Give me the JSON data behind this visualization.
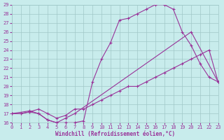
{
  "bg_color": "#c8ecec",
  "grid_color": "#a0c8c8",
  "line_color": "#993399",
  "xlim": [
    0,
    23
  ],
  "ylim": [
    16,
    29
  ],
  "xticks": [
    0,
    1,
    2,
    3,
    4,
    5,
    6,
    7,
    8,
    9,
    10,
    11,
    12,
    13,
    14,
    15,
    16,
    17,
    18,
    19,
    20,
    21,
    22,
    23
  ],
  "yticks": [
    16,
    17,
    18,
    19,
    20,
    21,
    22,
    23,
    24,
    25,
    26,
    27,
    28,
    29
  ],
  "xlabel": "Windchill (Refroidissement éolien,°C)",
  "line1_x": [
    0,
    1,
    2,
    3,
    4,
    5,
    6,
    7,
    8,
    9,
    10,
    11,
    12,
    13,
    14,
    15,
    16,
    17,
    18,
    19,
    20,
    21,
    22,
    23
  ],
  "line1_y": [
    17,
    17,
    17.2,
    17,
    16.3,
    16,
    16,
    16,
    16.2,
    20.5,
    23.0,
    24.8,
    27.3,
    27.5,
    28.0,
    28.5,
    29.0,
    29.0,
    28.5,
    26.0,
    24.5,
    22.5,
    21.0,
    20.5
  ],
  "line2_x": [
    0,
    2,
    3,
    4,
    5,
    6,
    7,
    20,
    23
  ],
  "line2_y": [
    17,
    17.3,
    17.0,
    16.3,
    16.0,
    16.5,
    17.0,
    26.0,
    20.5
  ],
  "line3_x": [
    0,
    1,
    2,
    3,
    4,
    5,
    6,
    7,
    8,
    9,
    10,
    11,
    12,
    13,
    14,
    15,
    16,
    17,
    18,
    19,
    20,
    21,
    22,
    23
  ],
  "line3_y": [
    17,
    17,
    17.2,
    17.5,
    17.0,
    16.5,
    16.8,
    17.5,
    17.5,
    18.0,
    18.5,
    19.0,
    19.5,
    20.0,
    20.0,
    20.5,
    21.0,
    21.5,
    22.0,
    22.5,
    23.0,
    23.5,
    24.0,
    20.5
  ]
}
